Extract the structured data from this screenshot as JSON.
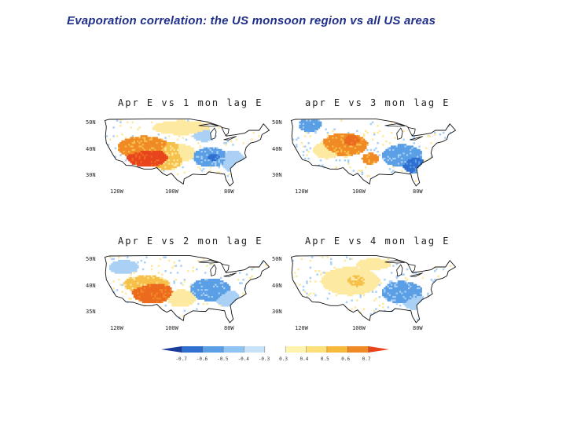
{
  "title": "Evaporation correlation: the US monsoon region vs all US areas",
  "panels": [
    {
      "title": "Apr E vs 1 mon lag E",
      "lat_labels": [
        "50N",
        "40N",
        "30N"
      ],
      "lon_labels": [
        "120W",
        "100W",
        "80W"
      ],
      "pattern": [
        {
          "lon": -109,
          "lat": 35.5,
          "rx": 8,
          "ry": 3.5,
          "level": 5
        },
        {
          "lon": -111,
          "lat": 39,
          "rx": 9,
          "ry": 4,
          "level": 3
        },
        {
          "lon": -103,
          "lat": 36,
          "rx": 6,
          "ry": 5,
          "level": 2
        },
        {
          "lon": -98,
          "lat": 37,
          "rx": 5,
          "ry": 3,
          "level": 1
        },
        {
          "lon": -88,
          "lat": 35.5,
          "rx": 6,
          "ry": 3.5,
          "level": -2
        },
        {
          "lon": -87,
          "lat": 35.5,
          "rx": 3,
          "ry": 2,
          "level": -3
        },
        {
          "lon": -80,
          "lat": 34,
          "rx": 4,
          "ry": 4,
          "level": -1
        },
        {
          "lon": -98,
          "lat": 46,
          "rx": 10,
          "ry": 2.5,
          "level": 1
        },
        {
          "lon": -90,
          "lat": 43,
          "rx": 4,
          "ry": 2,
          "level": -1
        }
      ]
    },
    {
      "title": "apr E vs 3 mon lag E",
      "lat_labels": [
        "50N",
        "40N",
        "30N"
      ],
      "lon_labels": [
        "120W",
        "100W",
        "80W"
      ],
      "pattern": [
        {
          "lon": -106,
          "lat": 40,
          "rx": 8,
          "ry": 4,
          "level": 3
        },
        {
          "lon": -104,
          "lat": 41,
          "rx": 4,
          "ry": 2.5,
          "level": 4
        },
        {
          "lon": -118,
          "lat": 47,
          "rx": 4,
          "ry": 2.5,
          "level": -2
        },
        {
          "lon": -97,
          "lat": 35,
          "rx": 3,
          "ry": 2,
          "level": 3
        },
        {
          "lon": -86,
          "lat": 36,
          "rx": 7,
          "ry": 4,
          "level": -2
        },
        {
          "lon": -82,
          "lat": 33,
          "rx": 4,
          "ry": 3,
          "level": -3
        },
        {
          "lon": -112,
          "lat": 38,
          "rx": 5,
          "ry": 3,
          "level": 1
        }
      ]
    },
    {
      "title": "Apr E vs 2 mon lag E",
      "lat_labels": [
        "50N",
        "40N",
        "35N"
      ],
      "lon_labels": [
        "120W",
        "100W",
        "80W"
      ],
      "pattern": [
        {
          "lon": -108,
          "lat": 36,
          "rx": 7,
          "ry": 4,
          "level": 4
        },
        {
          "lon": -110,
          "lat": 39,
          "rx": 8,
          "ry": 3,
          "level": 2
        },
        {
          "lon": -98,
          "lat": 34,
          "rx": 5,
          "ry": 3,
          "level": 1
        },
        {
          "lon": -88,
          "lat": 37,
          "rx": 7,
          "ry": 4,
          "level": -2
        },
        {
          "lon": -82,
          "lat": 34,
          "rx": 4,
          "ry": 3,
          "level": -1
        },
        {
          "lon": -118,
          "lat": 45,
          "rx": 5,
          "ry": 2.5,
          "level": -1
        }
      ]
    },
    {
      "title": "Apr E vs 4 mon lag E",
      "lat_labels": [
        "50N",
        "40N",
        "30N"
      ],
      "lon_labels": [
        "120W",
        "100W",
        "80W"
      ],
      "pattern": [
        {
          "lon": -104,
          "lat": 40,
          "rx": 10,
          "ry": 5,
          "level": 1
        },
        {
          "lon": -102,
          "lat": 40,
          "rx": 4,
          "ry": 2.5,
          "level": 2
        },
        {
          "lon": -86,
          "lat": 36,
          "rx": 7,
          "ry": 4,
          "level": -2
        },
        {
          "lon": -82,
          "lat": 33,
          "rx": 4,
          "ry": 3,
          "level": -1
        },
        {
          "lon": -96,
          "lat": 46,
          "rx": 6,
          "ry": 2,
          "level": 1
        }
      ]
    }
  ],
  "colorbar": {
    "labels": [
      "-0.7",
      "-0.6",
      "-0.5",
      "-0.4",
      "-0.3",
      "0.3",
      "0.4",
      "0.5",
      "0.6",
      "0.7"
    ],
    "colors": [
      "#1a3a9c",
      "#2f6fd0",
      "#5a9fe6",
      "#8ec3f2",
      "#c8e2fa",
      "#ffffff",
      "#fff3b0",
      "#fde07a",
      "#f6b93a",
      "#f08a24",
      "#e8451c"
    ]
  },
  "level_colors": {
    "-3": "#2f6fd0",
    "-2": "#5a9fe6",
    "-1": "#aad1f5",
    "1": "#fde9a0",
    "2": "#f6c04a",
    "3": "#f08a24",
    "4": "#ec6a1e",
    "5": "#e8451c"
  }
}
